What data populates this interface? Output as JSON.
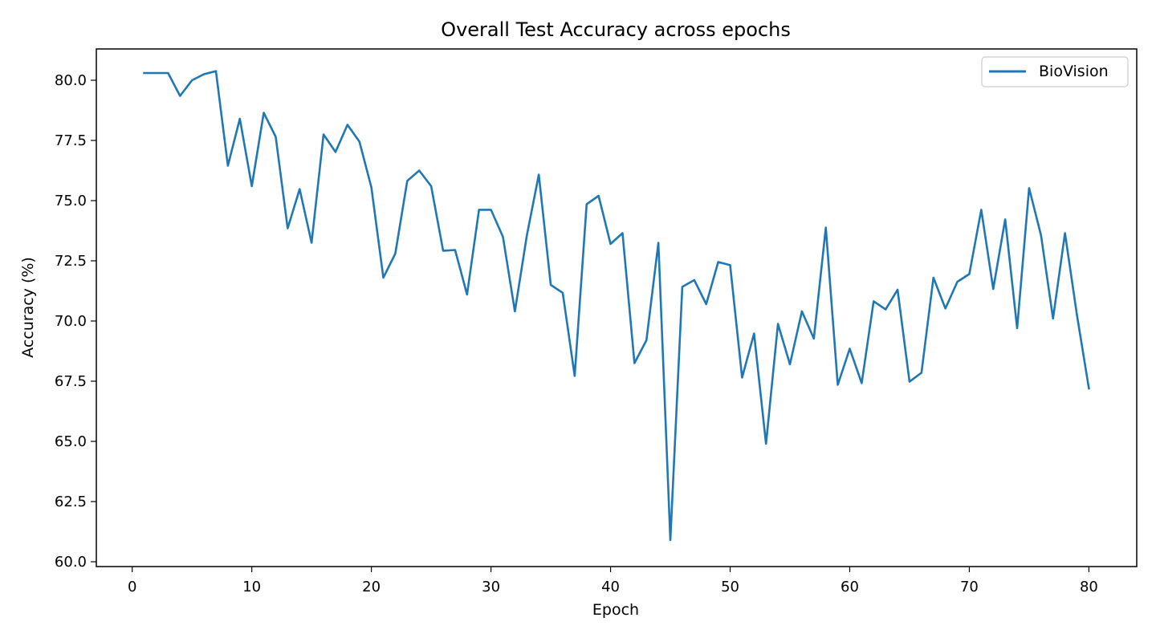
{
  "chart_data": {
    "type": "line",
    "title": "Overall Test Accuracy across epochs",
    "xlabel": "Epoch",
    "ylabel": "Accuracy (%)",
    "xlim": [
      -3,
      84
    ],
    "ylim": [
      59.8,
      81.3
    ],
    "xticks": [
      0,
      10,
      20,
      30,
      40,
      50,
      60,
      70,
      80
    ],
    "yticks": [
      60.0,
      62.5,
      65.0,
      67.5,
      70.0,
      72.5,
      75.0,
      77.5,
      80.0
    ],
    "xtick_labels": [
      "0",
      "10",
      "20",
      "30",
      "40",
      "50",
      "60",
      "70",
      "80"
    ],
    "ytick_labels": [
      "60.0",
      "62.5",
      "65.0",
      "67.5",
      "70.0",
      "72.5",
      "75.0",
      "77.5",
      "80.0"
    ],
    "grid": false,
    "legend_position": "top-right",
    "colors": {
      "series": "#1f77b4"
    },
    "series": [
      {
        "name": "BioVision",
        "x": [
          1,
          2,
          3,
          4,
          5,
          6,
          7,
          8,
          9,
          10,
          11,
          12,
          13,
          14,
          15,
          16,
          17,
          18,
          19,
          20,
          21,
          22,
          23,
          24,
          25,
          26,
          27,
          28,
          29,
          30,
          31,
          32,
          33,
          34,
          35,
          36,
          37,
          38,
          39,
          40,
          41,
          42,
          43,
          44,
          45,
          46,
          47,
          48,
          49,
          50,
          51,
          52,
          53,
          54,
          55,
          56,
          57,
          58,
          59,
          60,
          61,
          62,
          63,
          64,
          65,
          66,
          67,
          68,
          69,
          70,
          71,
          72,
          73,
          74,
          75,
          76,
          77,
          78,
          79,
          80
        ],
        "values": [
          80.3,
          80.3,
          80.3,
          79.35,
          80.0,
          80.25,
          80.38,
          76.45,
          78.4,
          75.6,
          78.65,
          77.65,
          73.85,
          75.48,
          73.25,
          77.75,
          77.02,
          78.15,
          77.45,
          75.55,
          71.8,
          72.8,
          75.82,
          76.25,
          75.6,
          72.92,
          72.95,
          71.1,
          74.62,
          74.62,
          73.5,
          70.4,
          73.55,
          76.08,
          71.5,
          71.17,
          67.72,
          74.85,
          75.2,
          73.2,
          73.65,
          68.25,
          69.2,
          73.25,
          60.9,
          71.42,
          71.7,
          70.7,
          72.45,
          72.32,
          67.65,
          69.48,
          64.9,
          69.88,
          68.2,
          70.4,
          69.27,
          73.88,
          67.35,
          68.85,
          67.42,
          70.82,
          70.48,
          71.3,
          67.48,
          67.85,
          71.8,
          70.52,
          71.63,
          71.95,
          74.62,
          71.33,
          74.22,
          69.7,
          75.52,
          73.55,
          70.1,
          73.65,
          70.25,
          67.2
        ]
      }
    ]
  }
}
